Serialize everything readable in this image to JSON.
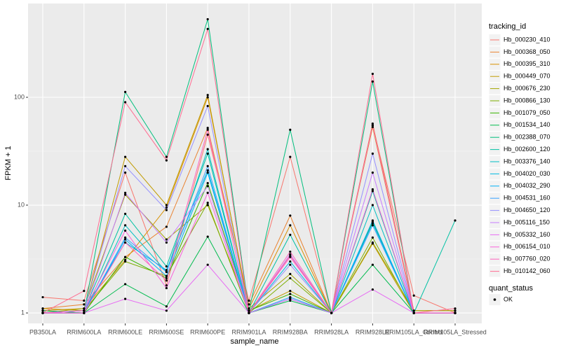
{
  "chart_data": {
    "type": "line",
    "log_y": true,
    "grid": true,
    "x_label": "sample_name",
    "y_label": "FPKM + 1",
    "legend_title": "tracking_id",
    "shape_legend_title": "quant_status",
    "shape_legend_items": [
      "OK"
    ],
    "categories": [
      "PB350LA",
      "RRIM600LA",
      "RRIM600LE",
      "RRIM600SE",
      "RRIM600PE",
      "RRIM901LA",
      "RRIM928BA",
      "RRIM928LA",
      "RRIM928LE",
      "RRIM105LA_Control",
      "RRIM105LA_Stressed"
    ],
    "ylim": [
      0.8,
      741
    ],
    "yticks": [
      1,
      10,
      100
    ],
    "series": [
      {
        "name": "Hb_000230_410",
        "color": "#F8766D",
        "values": [
          1.4,
          1.3,
          20,
          1.8,
          45,
          1.3,
          28,
          1,
          55,
          1.45,
          1.0
        ]
      },
      {
        "name": "Hb_000368_050",
        "color": "#EA8331",
        "values": [
          1.1,
          1.2,
          3.3,
          6.3,
          52,
          1.2,
          8,
          1,
          57,
          1.05,
          1.05
        ]
      },
      {
        "name": "Hb_000395_310",
        "color": "#D89000",
        "values": [
          1.05,
          1.1,
          3.1,
          9.5,
          100,
          1.1,
          6.5,
          1,
          53,
          1.0,
          1.0
        ]
      },
      {
        "name": "Hb_000449_070",
        "color": "#C09B00",
        "values": [
          1.1,
          1.05,
          28,
          10,
          105,
          1.05,
          1.6,
          1,
          4.4,
          1.0,
          1.0
        ]
      },
      {
        "name": "Hb_000676_230",
        "color": "#A3A500",
        "values": [
          1.0,
          1.1,
          12.5,
          4.8,
          10,
          1.1,
          2.3,
          1,
          4.5,
          1.05,
          1.05
        ]
      },
      {
        "name": "Hb_000866_130",
        "color": "#7CAE00",
        "values": [
          1.0,
          1.05,
          3.0,
          2.2,
          10.5,
          1.0,
          2.1,
          1,
          5,
          1.0,
          1.0
        ]
      },
      {
        "name": "Hb_001079_050",
        "color": "#39B600",
        "values": [
          1.05,
          1.0,
          3.3,
          2.1,
          16,
          1.05,
          1.5,
          1,
          7,
          1.0,
          1.0
        ]
      },
      {
        "name": "Hb_001534_140",
        "color": "#00BB4E",
        "values": [
          1.0,
          1.0,
          1.85,
          1.15,
          5.1,
          1.0,
          1.3,
          1,
          2.8,
          1.0,
          1.0
        ]
      },
      {
        "name": "Hb_002388_070",
        "color": "#00BF7D",
        "values": [
          1.05,
          1.0,
          112,
          28,
          530,
          1.05,
          50,
          1,
          140,
          1.0,
          1.0
        ]
      },
      {
        "name": "Hb_002600_120",
        "color": "#00C1A3",
        "values": [
          1.0,
          1.05,
          8.3,
          2.7,
          30,
          1.0,
          5.3,
          1,
          13.5,
          1.0,
          7.2
        ]
      },
      {
        "name": "Hb_003376_140",
        "color": "#00BFC4",
        "values": [
          1.0,
          1.0,
          6.5,
          2.4,
          33,
          1.0,
          1.4,
          1,
          10,
          1.0,
          1.0
        ]
      },
      {
        "name": "Hb_004020_030",
        "color": "#00BAE0",
        "values": [
          1.0,
          1.05,
          4.5,
          2.5,
          21,
          1.0,
          3.0,
          1,
          6.8,
          1.0,
          1.0
        ]
      },
      {
        "name": "Hb_004032_290",
        "color": "#00B0F6",
        "values": [
          1.0,
          1.0,
          4.8,
          2.2,
          20,
          1.0,
          1.35,
          1,
          7.2,
          1.0,
          1.0
        ]
      },
      {
        "name": "Hb_004531_160",
        "color": "#35A2FF",
        "values": [
          1.0,
          1.0,
          5.0,
          2.4,
          23,
          1.0,
          1.4,
          1,
          6.5,
          1.0,
          1.0
        ]
      },
      {
        "name": "Hb_004650_120",
        "color": "#9590FF",
        "values": [
          1.0,
          1.05,
          23,
          9.0,
          83,
          1.0,
          2.8,
          1,
          30,
          1.0,
          1.0
        ]
      },
      {
        "name": "Hb_005116_150",
        "color": "#C77CFF",
        "values": [
          1.0,
          1.0,
          13,
          4.5,
          15,
          1.0,
          3.5,
          1,
          20,
          1.0,
          1.0
        ]
      },
      {
        "name": "Hb_005332_160",
        "color": "#E76BF3",
        "values": [
          1.0,
          1.0,
          1.35,
          1.05,
          2.8,
          1.0,
          1.35,
          1,
          1.65,
          1.0,
          1.0
        ]
      },
      {
        "name": "Hb_006154_010",
        "color": "#FA62DB",
        "values": [
          1.0,
          1.05,
          5.8,
          1.7,
          13,
          1.0,
          3.3,
          1,
          14,
          1.0,
          1.0
        ]
      },
      {
        "name": "Hb_007760_020",
        "color": "#FF62BC",
        "values": [
          1.0,
          1.0,
          4.5,
          2.0,
          50,
          1.0,
          3.7,
          1,
          55,
          1.0,
          1.0
        ]
      },
      {
        "name": "Hb_010142_060",
        "color": "#FF6C91",
        "values": [
          1.0,
          1.6,
          90,
          26,
          430,
          1.0,
          3.4,
          1,
          165,
          1.0,
          1.1
        ]
      }
    ]
  }
}
